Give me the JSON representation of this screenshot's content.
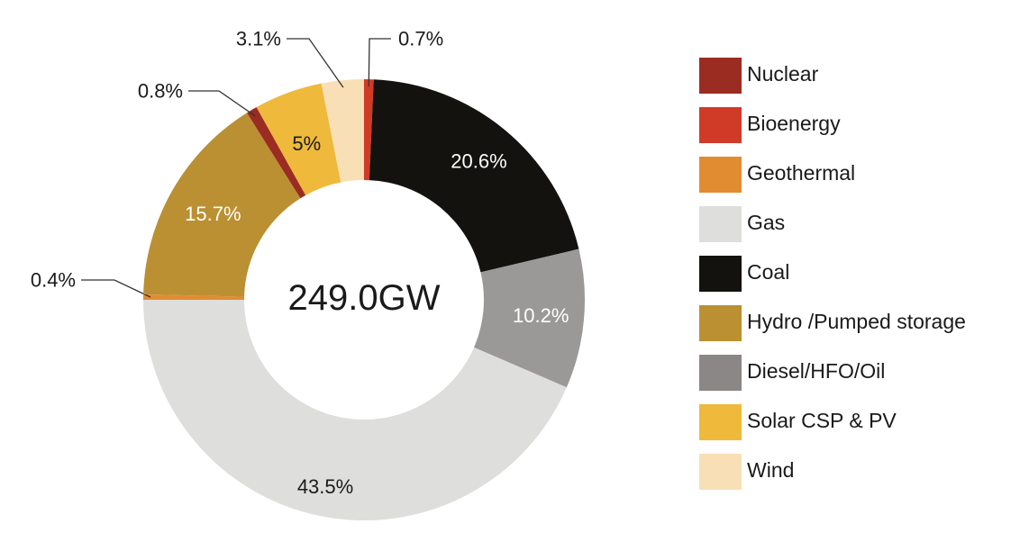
{
  "chart_data": {
    "type": "pie",
    "center_label": "249.0GW",
    "slices": [
      {
        "name": "Nuclear",
        "value": 0.8,
        "label": "0.8%",
        "color": "#9b2c22"
      },
      {
        "name": "Bioenergy",
        "value": 0.7,
        "label": "0.7%",
        "color": "#cf3b27"
      },
      {
        "name": "Geothermal",
        "value": 0.4,
        "label": "0.4%",
        "color": "#e28c32"
      },
      {
        "name": "Gas",
        "value": 43.5,
        "label": "43.5%",
        "color": "#dededc"
      },
      {
        "name": "Coal",
        "value": 20.6,
        "label": "20.6%",
        "color": "#14120e"
      },
      {
        "name": "Hydro /Pumped storage",
        "value": 15.7,
        "label": "15.7%",
        "color": "#bb9033"
      },
      {
        "name": "Diesel/HFO/Oil",
        "value": 10.2,
        "label": "10.2%",
        "color": "#9b9998"
      },
      {
        "name": "Solar CSP & PV",
        "value": 5.0,
        "label": "5%",
        "color": "#efb93c"
      },
      {
        "name": "Wind",
        "value": 3.1,
        "label": "3.1%",
        "color": "#f8dfb6"
      }
    ],
    "legend": [
      {
        "name": "Nuclear",
        "color": "#9b2c22"
      },
      {
        "name": "Bioenergy",
        "color": "#cf3b27"
      },
      {
        "name": "Geothermal",
        "color": "#e28c32"
      },
      {
        "name": "Gas",
        "color": "#dededc"
      },
      {
        "name": "Coal",
        "color": "#14120e"
      },
      {
        "name": "Hydro /Pumped storage",
        "color": "#bb9033"
      },
      {
        "name": "Diesel/HFO/Oil",
        "color": "#8a8786"
      },
      {
        "name": "Solar CSP & PV",
        "color": "#efb93c"
      },
      {
        "name": "Wind",
        "color": "#f8dfb6"
      }
    ],
    "legend_position": "right"
  }
}
